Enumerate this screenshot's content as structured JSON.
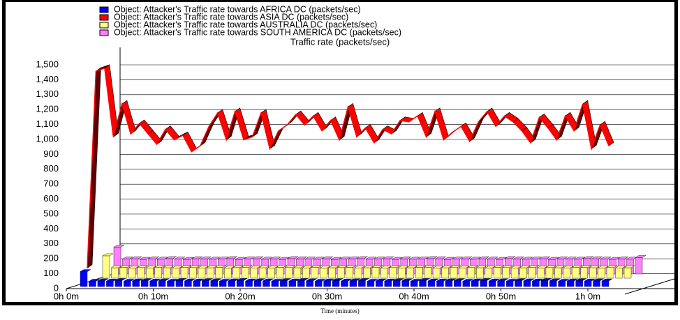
{
  "chart_data": {
    "type": "line3d",
    "title": "Traffic rate (packets/sec)",
    "xlabel": "Time (minutes)",
    "x": [
      0,
      1,
      2,
      3,
      4,
      5,
      6,
      7,
      8,
      9,
      10,
      11,
      12,
      13,
      14,
      15,
      16,
      17,
      18,
      19,
      20,
      21,
      22,
      23,
      24,
      25,
      26,
      27,
      28,
      29,
      30,
      31,
      32,
      33,
      34,
      35,
      36,
      37,
      38,
      39,
      40,
      41,
      42,
      43,
      44,
      45,
      46,
      47,
      48,
      49,
      50,
      51,
      52,
      53,
      54,
      55,
      56,
      57,
      58,
      59,
      60
    ],
    "series": [
      {
        "name": "Object: Attacker's Traffic rate towards AFRICA DC (packets/sec)",
        "color": "#0000ff",
        "depth": 0,
        "values": [
          100,
          35,
          38,
          36,
          40,
          35,
          37,
          39,
          36,
          38,
          35,
          40,
          37,
          36,
          39,
          38,
          35,
          37,
          40,
          36,
          38,
          37,
          35,
          39,
          36,
          40,
          38,
          35,
          37,
          39,
          36,
          38,
          40,
          35,
          37,
          36,
          39,
          38,
          35,
          40,
          37,
          36,
          38,
          39,
          35,
          37,
          40,
          36,
          38,
          35,
          39,
          37,
          36,
          40,
          38,
          35,
          37,
          39,
          36,
          38,
          37
        ]
      },
      {
        "name": "Object: Attacker's Traffic rate towards ASIA DC (packets/sec)",
        "color": "#ff0000",
        "depth": 1,
        "values": [
          100,
          1420,
          1440,
          980,
          1200,
          1000,
          1070,
          1000,
          930,
          1030,
          960,
          990,
          880,
          920,
          1050,
          1140,
          960,
          1150,
          960,
          980,
          1140,
          900,
          1020,
          1060,
          1130,
          1060,
          1120,
          1020,
          1090,
          960,
          1180,
          980,
          1040,
          940,
          1030,
          1000,
          1090,
          1080,
          1120,
          980,
          1150,
          960,
          1010,
          1050,
          950,
          1080,
          1150,
          1050,
          1120,
          1080,
          1020,
          940,
          1110,
          1040,
          960,
          1120,
          1020,
          1200,
          900,
          1060,
          920
        ]
      },
      {
        "name": "Object: Attacker's Traffic rate towards AUSTRALIA DC (packets/sec)",
        "color": "#ffff80",
        "depth": 2,
        "values": [
          150,
          70,
          72,
          68,
          71,
          69,
          73,
          70,
          68,
          72,
          71,
          69,
          70,
          73,
          68,
          71,
          72,
          69,
          70,
          68,
          73,
          71,
          70,
          69,
          72,
          68,
          70,
          71,
          73,
          69,
          70,
          72,
          68,
          71,
          69,
          70,
          73,
          72,
          68,
          70,
          71,
          69,
          72,
          70,
          68,
          73,
          71,
          69,
          70,
          72,
          68,
          71,
          70,
          69,
          73,
          72,
          70,
          68,
          71,
          69,
          70
        ]
      },
      {
        "name": "Object: Attacker's Traffic rate towards SOUTH AMERICA DC (packets/sec)",
        "color": "#ff80ff",
        "depth": 3,
        "values": [
          180,
          100,
          102,
          98,
          101,
          99,
          103,
          100,
          98,
          102,
          101,
          99,
          100,
          103,
          98,
          101,
          102,
          99,
          100,
          98,
          103,
          101,
          100,
          99,
          102,
          98,
          100,
          101,
          103,
          99,
          100,
          102,
          98,
          101,
          99,
          100,
          103,
          102,
          98,
          100,
          101,
          99,
          102,
          100,
          98,
          103,
          101,
          99,
          100,
          102,
          98,
          101,
          100,
          99,
          103,
          102,
          100,
          98,
          101,
          99,
          110
        ]
      }
    ],
    "xlim": [
      0,
      62
    ],
    "xticks": [
      {
        "value": 0,
        "label": "0h 0m"
      },
      {
        "value": 10,
        "label": "0h 10m"
      },
      {
        "value": 20,
        "label": "0h 20m"
      },
      {
        "value": 30,
        "label": "0h 30m"
      },
      {
        "value": 40,
        "label": "0h 40m"
      },
      {
        "value": 50,
        "label": "0h 50m"
      },
      {
        "value": 60,
        "label": "1h 0m"
      }
    ],
    "ylim": [
      0,
      1500
    ],
    "yticks": [
      0,
      100,
      200,
      300,
      400,
      500,
      600,
      700,
      800,
      900,
      {
        "value": 1000,
        "label": "1,000"
      },
      {
        "value": 1100,
        "label": "1,100"
      },
      {
        "value": 1200,
        "label": "1,200"
      },
      {
        "value": 1300,
        "label": "1,300"
      },
      {
        "value": 1400,
        "label": "1,400"
      },
      {
        "value": 1500,
        "label": "1,500"
      }
    ],
    "grid": true
  }
}
